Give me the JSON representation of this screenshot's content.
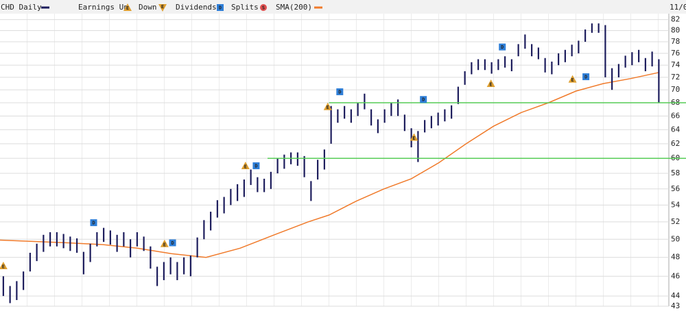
{
  "chart_data": {
    "type": "range-bar",
    "title": "CHD Daily",
    "date_label": "11/0",
    "legend": {
      "earnings_up": "Earnings Up",
      "earnings_down": "Down",
      "dividends": "Dividends",
      "splits": "Splits",
      "sma": "SMA(200)"
    },
    "symbols": {
      "earnings": "E",
      "dividend": "D",
      "split": "S"
    },
    "log_scale": true,
    "grid": true,
    "xlim": [
      -0.5,
      99.5
    ],
    "ylim": [
      43,
      83.1
    ],
    "yticks": [
      82,
      80,
      78,
      76,
      74,
      72,
      70,
      68,
      66,
      64,
      62,
      60,
      58,
      56,
      54,
      52,
      50,
      48,
      46,
      44,
      43
    ],
    "series": [
      {
        "name": "CHD Daily",
        "color": "#1c1c5c",
        "high": [
          46,
          45,
          45.5,
          46.5,
          48.5,
          49.5,
          50.5,
          50.8,
          50.8,
          50.6,
          50.3,
          50.1,
          48.6,
          49.5,
          50.8,
          51.3,
          51,
          50.5,
          50.8,
          50,
          50.8,
          50.3,
          49.2,
          47,
          47.5,
          48,
          47.5,
          48,
          48.2,
          50.2,
          52.2,
          53.2,
          54.6,
          55,
          56,
          56.6,
          57.2,
          58.5,
          57.5,
          57.3,
          58.2,
          60,
          60.5,
          60.8,
          60.8,
          60.3,
          57,
          59.8,
          61.2,
          67.5,
          67,
          67.5,
          67,
          68,
          69.4,
          67,
          65.5,
          67,
          68,
          68.5,
          66.2,
          64.2,
          63.8,
          65.4,
          66,
          66.5,
          67,
          67.6,
          70.5,
          73,
          74.5,
          75,
          75,
          74.5,
          75,
          75.5,
          75,
          77.6,
          79.3,
          77.6,
          77,
          75.2,
          74.6,
          76,
          76.6,
          77.5,
          78.2,
          80.2,
          81.3,
          81.3,
          81,
          73.5,
          74.2,
          75.6,
          76.2,
          76.6,
          75.2,
          76.3,
          75
        ],
        "low": [
          44,
          43.3,
          43.6,
          44.6,
          46.5,
          47.6,
          48.6,
          49.2,
          49.2,
          49,
          48.7,
          48.5,
          46.2,
          47.5,
          49.2,
          49.7,
          49.4,
          48.6,
          49.2,
          48,
          49.2,
          48.7,
          46.8,
          45,
          45.6,
          46.2,
          45.6,
          46.2,
          46,
          48,
          50,
          51,
          52.5,
          53,
          54,
          54.5,
          55,
          56.5,
          55.6,
          55.6,
          56,
          58,
          58.6,
          59.2,
          59,
          57.5,
          54.5,
          57.2,
          58.5,
          62,
          65,
          65.6,
          65,
          66,
          67,
          64.6,
          63.5,
          65,
          66,
          66,
          63.8,
          61.5,
          59.5,
          63.6,
          64.2,
          64.6,
          65.2,
          65.6,
          67.8,
          70.8,
          72.5,
          73.2,
          73.2,
          72.6,
          73.2,
          73.6,
          73,
          75.5,
          76.8,
          75.5,
          75,
          72.8,
          72.5,
          74,
          74.5,
          75.5,
          76,
          78,
          79.6,
          79.6,
          72,
          70,
          72,
          73.6,
          74,
          74.5,
          73,
          73.8,
          68
        ]
      }
    ],
    "sma": {
      "name": "SMA(200)",
      "color": "#f07a2a",
      "x": [
        -0.5,
        9.7,
        14.9,
        20,
        25.1,
        30.3,
        35.4,
        40.5,
        45.6,
        48.7,
        52.8,
        56.9,
        61,
        65.1,
        69.2,
        73.3,
        77.4,
        81.5,
        85.6,
        89.7,
        93.8,
        98
      ],
      "y": [
        49.9,
        49.6,
        49.4,
        49,
        48.4,
        48,
        49,
        50.5,
        52,
        52.8,
        54.5,
        56,
        57.3,
        59.4,
        62,
        64.5,
        66.5,
        68,
        69.8,
        71,
        71.8,
        72.8
      ]
    },
    "earnings": {
      "color": "#e0a030",
      "x": [
        0,
        24.1,
        36.2,
        48.5,
        61.4,
        72.9,
        85.1
      ],
      "y": [
        47.1,
        49.5,
        59,
        67.4,
        62.9,
        71,
        71.7
      ]
    },
    "dividends": {
      "color": "#2f7fd8",
      "x": [
        13.5,
        25.3,
        37.8,
        50.3,
        62.8,
        74.6,
        87.1
      ],
      "y": [
        51.9,
        49.6,
        59,
        69.7,
        68.5,
        77.1,
        72.1
      ]
    },
    "levels": {
      "color": "#55cc55",
      "values": [
        68,
        60
      ],
      "start": [
        48.7,
        39.5
      ]
    }
  }
}
